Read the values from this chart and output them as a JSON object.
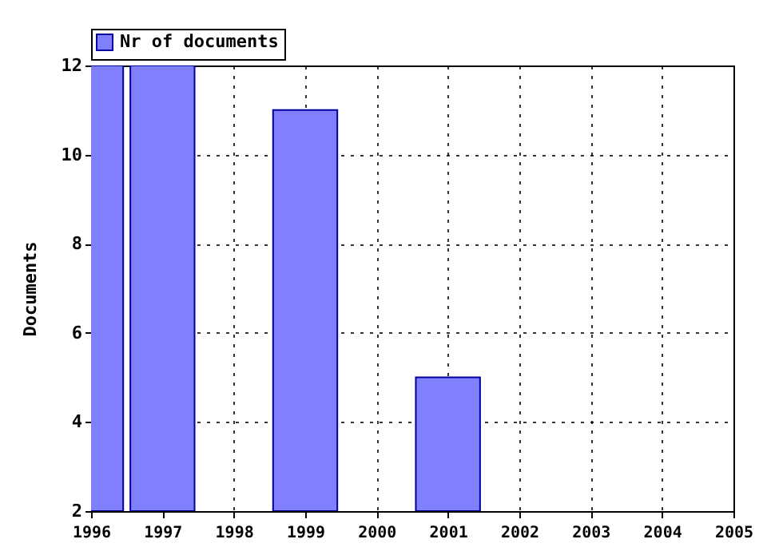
{
  "chart_data": {
    "type": "bar",
    "ylabel": "Documents",
    "x": [
      1996,
      1997,
      1999,
      2001
    ],
    "series": [
      {
        "name": "Nr of documents",
        "color": "#8080ff",
        "values": [
          12,
          12,
          11,
          5
        ]
      }
    ],
    "xlim": [
      1996,
      2005
    ],
    "xticks": [
      1996,
      1997,
      1998,
      1999,
      2000,
      2001,
      2002,
      2003,
      2004,
      2005
    ],
    "ylim": [
      2,
      12
    ],
    "yticks": [
      2,
      4,
      6,
      8,
      10,
      12
    ],
    "grid": true,
    "legend": "top"
  }
}
